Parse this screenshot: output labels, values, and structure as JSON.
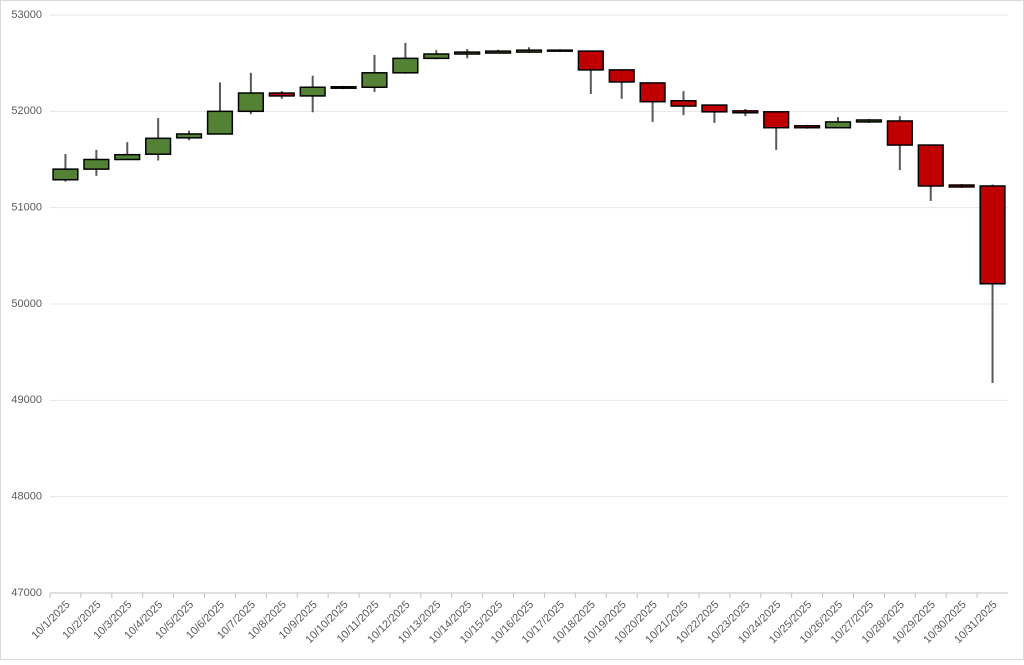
{
  "chart_data": {
    "type": "candlestick",
    "categories": [
      "10/1/2025",
      "10/2/2025",
      "10/3/2025",
      "10/4/2025",
      "10/5/2025",
      "10/6/2025",
      "10/7/2025",
      "10/8/2025",
      "10/9/2025",
      "10/10/2025",
      "10/11/2025",
      "10/12/2025",
      "10/13/2025",
      "10/14/2025",
      "10/15/2025",
      "10/16/2025",
      "10/17/2025",
      "10/18/2025",
      "10/19/2025",
      "10/20/2025",
      "10/21/2025",
      "10/22/2025",
      "10/23/2025",
      "10/24/2025",
      "10/25/2025",
      "10/26/2025",
      "10/27/2025",
      "10/28/2025",
      "10/29/2025",
      "10/30/2025",
      "10/31/2025"
    ],
    "open": [
      51290,
      51400,
      51500,
      51555,
      51725,
      51765,
      52000,
      52190,
      52160,
      52240,
      52250,
      52400,
      52550,
      52595,
      52605,
      52615,
      52625,
      52625,
      52430,
      52295,
      52110,
      52065,
      52005,
      51995,
      51850,
      51830,
      51890,
      51900,
      51650,
      51235,
      51225
    ],
    "high": [
      51557,
      51600,
      51680,
      51930,
      51800,
      52300,
      52400,
      52210,
      52370,
      52265,
      52585,
      52710,
      52635,
      52645,
      52640,
      52665,
      52645,
      52625,
      52430,
      52295,
      52210,
      52065,
      52025,
      51995,
      51860,
      51940,
      51920,
      51950,
      51650,
      51245,
      51240
    ],
    "low": [
      51270,
      51330,
      51500,
      51490,
      51700,
      51760,
      51970,
      52130,
      51990,
      52230,
      52200,
      52390,
      52540,
      52550,
      52600,
      52605,
      52615,
      52180,
      52130,
      51890,
      51960,
      51880,
      51950,
      51600,
      51820,
      51830,
      51880,
      51390,
      51070,
      51205,
      49180
    ],
    "close": [
      51400,
      51500,
      51550,
      51720,
      51765,
      52000,
      52190,
      52160,
      52250,
      52255,
      52400,
      52550,
      52595,
      52615,
      52625,
      52635,
      52635,
      52430,
      52305,
      52100,
      52055,
      51995,
      51985,
      51830,
      51830,
      51890,
      51910,
      51650,
      51225,
      51215,
      50210
    ],
    "up_color": "#548235",
    "down_color": "#c00000",
    "ylim": [
      47000,
      53000
    ],
    "yticks": [
      47000,
      48000,
      49000,
      50000,
      51000,
      52000,
      53000
    ],
    "grid": true
  }
}
